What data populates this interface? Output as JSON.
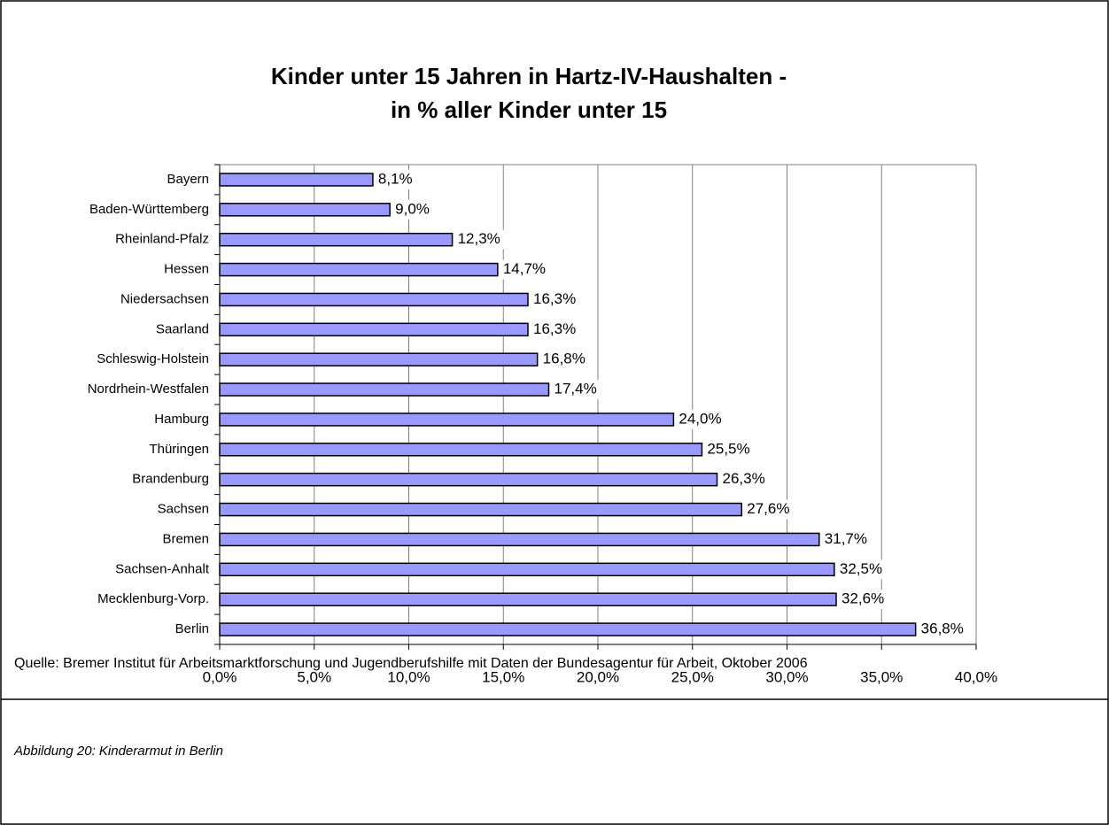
{
  "chart_data": {
    "type": "hbar",
    "title": [
      "Kinder unter 15 Jahren in Hartz-IV-Haushalten -",
      "in % aller Kinder unter 15"
    ],
    "categories": [
      "Bayern",
      "Baden-Württemberg",
      "Rheinland-Pfalz",
      "Hessen",
      "Niedersachsen",
      "Saarland",
      "Schleswig-Holstein",
      "Nordrhein-Westfalen",
      "Hamburg",
      "Thüringen",
      "Brandenburg",
      "Sachsen",
      "Bremen",
      "Sachsen-Anhalt",
      "Mecklenburg-Vorp.",
      "Berlin"
    ],
    "values": [
      8.1,
      9.0,
      12.3,
      14.7,
      16.3,
      16.3,
      16.8,
      17.4,
      24.0,
      25.5,
      26.3,
      27.6,
      31.7,
      32.5,
      32.6,
      36.8
    ],
    "value_labels": [
      "8,1%",
      "9,0%",
      "12,3%",
      "14,7%",
      "16,3%",
      "16,3%",
      "16,8%",
      "17,4%",
      "24,0%",
      "25,5%",
      "26,3%",
      "27,6%",
      "31,7%",
      "32,5%",
      "32,6%",
      "36,8%"
    ],
    "color": "#9999ff",
    "xlim": [
      0,
      40
    ],
    "xticks": [
      {
        "value": 0,
        "label": "0,0%"
      },
      {
        "value": 5,
        "label": "5,0%"
      },
      {
        "value": 10,
        "label": "10,0%"
      },
      {
        "value": 15,
        "label": "15,0%"
      },
      {
        "value": 20,
        "label": "20,0%"
      },
      {
        "value": 25,
        "label": "25,0%"
      },
      {
        "value": 30,
        "label": "30,0%"
      },
      {
        "value": 35,
        "label": "35,0%"
      },
      {
        "value": 40,
        "label": "40,0%"
      }
    ],
    "grid": true,
    "source": "Quelle: Bremer Institut für Arbeitsmarktforschung und Jugendberufshilfe mit Daten der Bundesagentur für Arbeit, Oktober 2006"
  },
  "caption": "Abbildung 20: Kinderarmut in Berlin"
}
